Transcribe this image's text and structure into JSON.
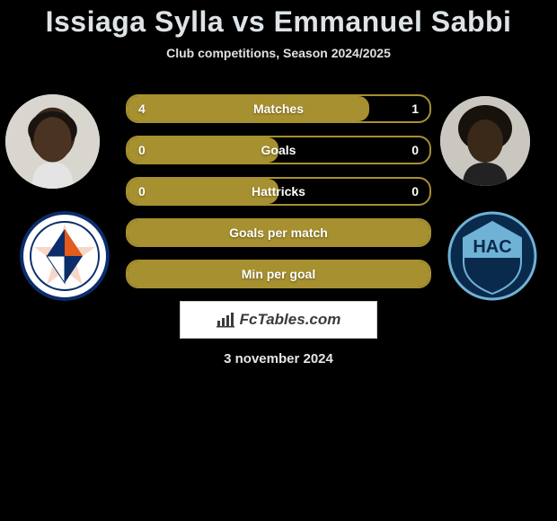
{
  "title": "Issiaga Sylla vs Emmanuel Sabbi",
  "subtitle": "Club competitions, Season 2024/2025",
  "date": "3 november 2024",
  "brand": "FcTables.com",
  "colors": {
    "bg": "#000000",
    "title": "#dde3e6",
    "text": "#e5e5e5",
    "bar_fill": "#a7902f",
    "bar_border": "#a7902f",
    "bar_track": "transparent",
    "brand_bg": "#ffffff",
    "brand_text": "#3b3b3b"
  },
  "typography": {
    "title_fontsize": 32,
    "subtitle_fontsize": 14,
    "label_fontsize": 14,
    "date_fontsize": 15
  },
  "bars": [
    {
      "label": "Matches",
      "left": "4",
      "right": "1",
      "fill_pct": 80
    },
    {
      "label": "Goals",
      "left": "0",
      "right": "0",
      "fill_pct": 50
    },
    {
      "label": "Hattricks",
      "left": "0",
      "right": "0",
      "fill_pct": 50
    },
    {
      "label": "Goals per match",
      "left": "",
      "right": "",
      "fill_pct": 100
    },
    {
      "label": "Min per goal",
      "left": "",
      "right": "",
      "fill_pct": 100
    }
  ],
  "avatars": {
    "left_player": {
      "name": "Issiaga Sylla",
      "skin": "#3a2a1a"
    },
    "right_player": {
      "name": "Emmanuel Sabbi",
      "skin": "#3a2818"
    },
    "left_club": {
      "name": "Montpellier HSC",
      "colors": [
        "#0b2d6b",
        "#ffffff",
        "#e35c1a"
      ]
    },
    "right_club": {
      "name": "Le Havre AC",
      "colors": [
        "#0a2a4c",
        "#6fb2d6"
      ]
    }
  }
}
